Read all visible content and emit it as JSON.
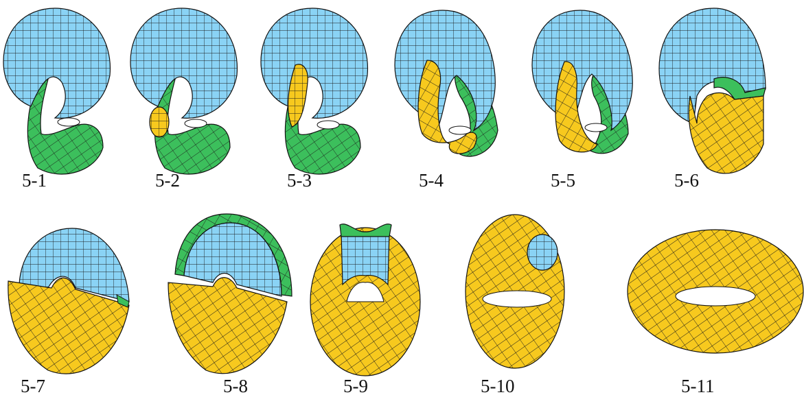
{
  "colors": {
    "blue": "#8ad3f5",
    "green": "#3cbf5c",
    "yellow": "#f7c91e",
    "grid": "#1a1a1a"
  },
  "frames": [
    {
      "label": "5-1"
    },
    {
      "label": "5-2"
    },
    {
      "label": "5-3"
    },
    {
      "label": "5-4"
    },
    {
      "label": "5-5"
    },
    {
      "label": "5-6"
    },
    {
      "label": "5-7"
    },
    {
      "label": "5-8"
    },
    {
      "label": "5-9"
    },
    {
      "label": "5-10"
    },
    {
      "label": "5-11"
    }
  ]
}
